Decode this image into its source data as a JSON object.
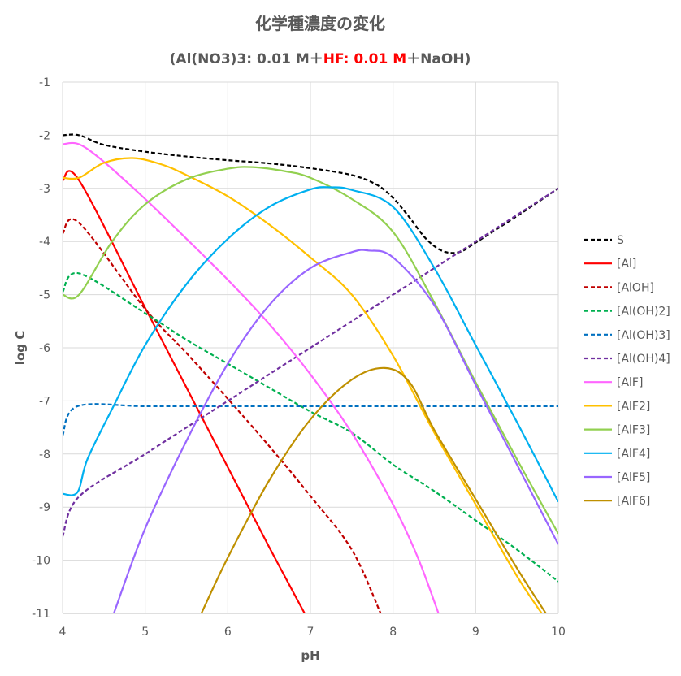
{
  "chart_data": {
    "type": "line",
    "title": "化学種濃度の変化",
    "subtitle": {
      "part1": "(Al(NO3)3: 0.01 M＋",
      "part2": "HF: 0.01 M",
      "part3": "＋NaOH)"
    },
    "xlabel": "pH",
    "ylabel": "log C",
    "xlim": [
      4,
      10
    ],
    "ylim": [
      -11,
      -1
    ],
    "xticks": [
      "4",
      "5",
      "6",
      "7",
      "8",
      "9",
      "10"
    ],
    "yticks": [
      "-1",
      "-2",
      "-3",
      "-4",
      "-5",
      "-6",
      "-7",
      "-8",
      "-9",
      "-10",
      "-11"
    ],
    "grid": true,
    "legend_position": "right",
    "series": [
      {
        "name": "S",
        "color": "#000000",
        "dash": true,
        "x": [
          4.0,
          4.2,
          4.5,
          5.0,
          5.5,
          6.0,
          6.5,
          7.0,
          7.5,
          7.8,
          8.0,
          8.2,
          8.4,
          8.6,
          8.8,
          9.0,
          9.5,
          10.0
        ],
        "y": [
          -2.0,
          -2.0,
          -2.18,
          -2.31,
          -2.4,
          -2.47,
          -2.53,
          -2.62,
          -2.75,
          -2.93,
          -3.18,
          -3.55,
          -3.95,
          -4.18,
          -4.2,
          -4.02,
          -3.52,
          -3.0
        ]
      },
      {
        "name": "[Al]",
        "color": "#ff0000",
        "dash": false,
        "x": [
          4.0,
          4.2,
          5.0,
          5.5,
          6.0,
          6.5,
          6.93
        ],
        "y": [
          -2.85,
          -2.85,
          -5.25,
          -6.75,
          -8.25,
          -9.75,
          -11.0
        ]
      },
      {
        "name": "[AlOH]",
        "color": "#c00000",
        "dash": true,
        "x": [
          4.0,
          4.2,
          5.0,
          5.5,
          6.0,
          6.5,
          7.0,
          7.5,
          7.85
        ],
        "y": [
          -3.85,
          -3.65,
          -5.27,
          -6.1,
          -6.96,
          -7.85,
          -8.79,
          -9.8,
          -11.0
        ]
      },
      {
        "name": "[Al(OH)2]",
        "color": "#00b050",
        "dash": true,
        "x": [
          4.0,
          4.2,
          5.0,
          5.5,
          6.0,
          6.5,
          7.0,
          7.5,
          8.0,
          8.5,
          9.0,
          9.5,
          10.0
        ],
        "y": [
          -4.95,
          -4.6,
          -5.35,
          -5.85,
          -6.3,
          -6.75,
          -7.2,
          -7.6,
          -8.2,
          -8.7,
          -9.25,
          -9.8,
          -10.4
        ]
      },
      {
        "name": "[Al(OH)3]",
        "color": "#0070c0",
        "dash": true,
        "x": [
          4.0,
          4.18,
          5.0,
          6.0,
          7.0,
          8.0,
          9.0,
          10.0
        ],
        "y": [
          -7.65,
          -7.1,
          -7.1,
          -7.1,
          -7.1,
          -7.1,
          -7.1,
          -7.1
        ]
      },
      {
        "name": "[Al(OH)4]",
        "color": "#7030a0",
        "dash": true,
        "x": [
          4.0,
          4.2,
          5.0,
          6.0,
          7.0,
          8.0,
          8.7,
          9.0,
          10.0
        ],
        "y": [
          -9.55,
          -8.8,
          -8.0,
          -7.0,
          -6.0,
          -5.0,
          -4.3,
          -4.0,
          -3.0
        ]
      },
      {
        "name": "[AlF]",
        "color": "#ff66ff",
        "dash": false,
        "x": [
          4.0,
          4.2,
          4.5,
          5.0,
          5.5,
          6.0,
          6.5,
          7.0,
          7.5,
          8.0,
          8.3,
          8.55
        ],
        "y": [
          -2.17,
          -2.17,
          -2.5,
          -3.2,
          -3.95,
          -4.72,
          -5.55,
          -6.5,
          -7.6,
          -8.95,
          -9.95,
          -11.0
        ]
      },
      {
        "name": "[AlF2]",
        "color": "#ffc000",
        "dash": false,
        "x": [
          4.0,
          4.2,
          4.5,
          4.85,
          5.2,
          5.5,
          6.0,
          6.5,
          7.0,
          7.5,
          8.0,
          8.5,
          9.0,
          9.5,
          9.8
        ],
        "y": [
          -2.8,
          -2.8,
          -2.52,
          -2.43,
          -2.55,
          -2.75,
          -3.15,
          -3.68,
          -4.3,
          -5.0,
          -6.15,
          -7.6,
          -8.95,
          -10.3,
          -11.0
        ]
      },
      {
        "name": "[AlF3]",
        "color": "#92d050",
        "dash": false,
        "x": [
          4.0,
          4.2,
          4.6,
          5.0,
          5.5,
          6.0,
          6.3,
          6.7,
          7.0,
          7.5,
          8.0,
          8.5,
          9.0,
          9.5,
          10.0
        ],
        "y": [
          -5.0,
          -5.0,
          -4.0,
          -3.3,
          -2.83,
          -2.63,
          -2.6,
          -2.68,
          -2.8,
          -3.2,
          -3.82,
          -5.15,
          -6.65,
          -8.1,
          -9.5
        ]
      },
      {
        "name": "[AlF4]",
        "color": "#00b0f0",
        "dash": false,
        "x": [
          4.0,
          4.18,
          4.3,
          4.6,
          5.0,
          5.5,
          6.0,
          6.5,
          7.0,
          7.25,
          7.5,
          8.0,
          8.5,
          9.0,
          9.5,
          10.0
        ],
        "y": [
          -8.75,
          -8.72,
          -8.1,
          -7.15,
          -5.95,
          -4.8,
          -3.95,
          -3.35,
          -3.02,
          -2.98,
          -3.03,
          -3.35,
          -4.5,
          -5.95,
          -7.4,
          -8.9
        ]
      },
      {
        "name": "[AlF5]",
        "color": "#9966ff",
        "dash": false,
        "x": [
          4.62,
          5.0,
          5.5,
          6.0,
          6.5,
          7.0,
          7.5,
          7.7,
          8.0,
          8.5,
          9.0,
          9.5,
          10.0
        ],
        "y": [
          -11.0,
          -9.4,
          -7.75,
          -6.3,
          -5.2,
          -4.5,
          -4.2,
          -4.17,
          -4.3,
          -5.2,
          -6.7,
          -8.2,
          -9.7
        ]
      },
      {
        "name": "[AlF6]",
        "color": "#bf9000",
        "dash": false,
        "x": [
          5.68,
          6.0,
          6.5,
          7.0,
          7.5,
          7.9,
          8.2,
          8.5,
          9.0,
          9.5,
          9.85
        ],
        "y": [
          -11.0,
          -9.95,
          -8.5,
          -7.35,
          -6.6,
          -6.38,
          -6.65,
          -7.55,
          -8.85,
          -10.15,
          -11.0
        ]
      }
    ]
  }
}
